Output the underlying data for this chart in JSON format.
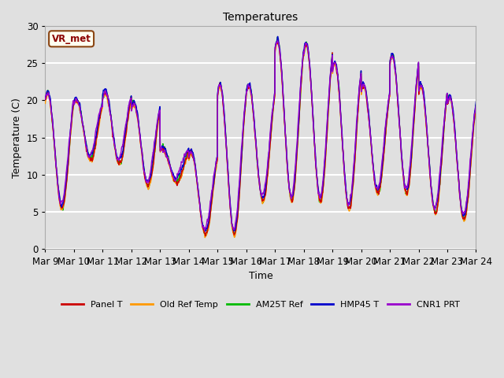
{
  "title": "Temperatures",
  "xlabel": "Time",
  "ylabel": "Temperature (C)",
  "ylim": [
    0,
    30
  ],
  "background_color": "#e0e0e0",
  "plot_bg_color": "#e0e0e0",
  "grid_color": "white",
  "annotation_text": "VR_met",
  "annotation_bg": "#fffff0",
  "annotation_edge": "#8B4513",
  "annotation_text_color": "#8B0000",
  "series_colors": {
    "Panel T": "#cc0000",
    "Old Ref Temp": "#ff9900",
    "AM25T Ref": "#00bb00",
    "HMP45 T": "#0000cc",
    "CNR1 PRT": "#9900cc"
  },
  "x_tick_labels": [
    "Mar 9",
    "Mar 10",
    "Mar 11",
    "Mar 12",
    "Mar 13",
    "Mar 14",
    "Mar 15",
    "Mar 16",
    "Mar 17",
    "Mar 18",
    "Mar 19",
    "Mar 20",
    "Mar 21",
    "Mar 22",
    "Mar 23",
    "Mar 24"
  ],
  "legend_labels": [
    "Panel T",
    "Old Ref Temp",
    "AM25T Ref",
    "HMP45 T",
    "CNR1 PRT"
  ],
  "day_max": [
    21.0,
    20.0,
    21.0,
    19.5,
    13.5,
    13.0,
    22.0,
    22.0,
    28.0,
    27.5,
    25.0,
    22.0,
    26.0,
    22.0,
    20.5
  ],
  "day_min": [
    5.5,
    12.0,
    11.5,
    8.5,
    9.0,
    2.0,
    2.0,
    6.5,
    6.5,
    6.5,
    5.5,
    7.5,
    7.5,
    5.0,
    4.0
  ]
}
